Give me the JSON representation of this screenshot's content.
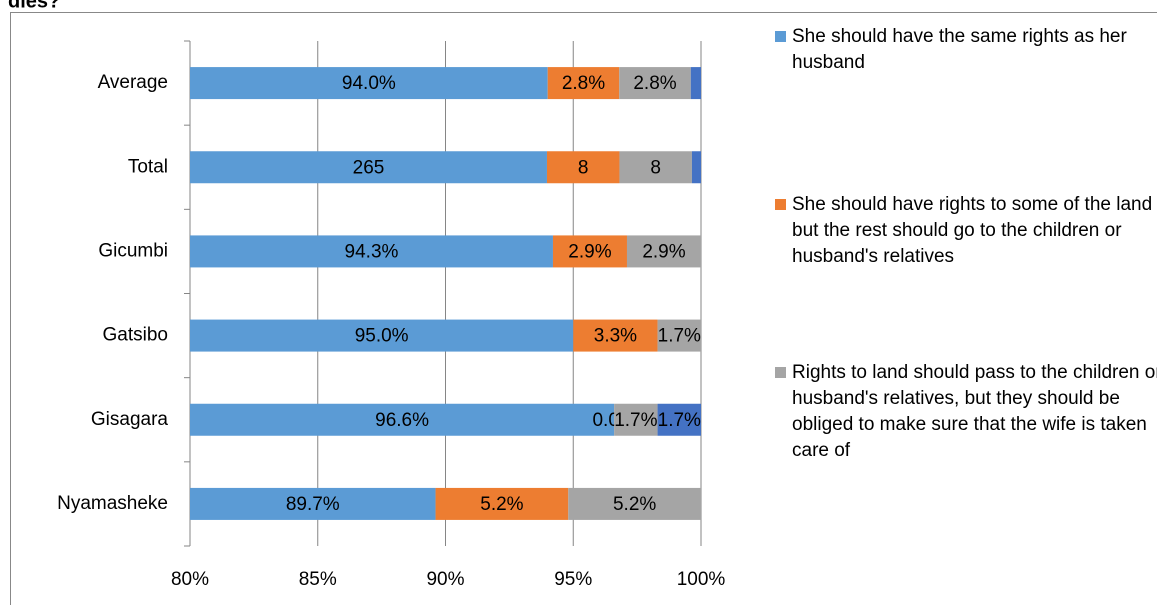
{
  "chart_data": {
    "type": "stacked-percent-bar",
    "title": "dies?",
    "categories": [
      "Average",
      "Total",
      "Gicumbi",
      "Gatsibo",
      "Gisagara",
      "Nyamasheke"
    ],
    "series": [
      {
        "name": "She should have the same rights as her husband",
        "color": "#5b9bd5",
        "values": [
          94.0,
          265,
          94.3,
          95.0,
          96.6,
          89.7
        ],
        "value_labels": [
          "94.0%",
          "265",
          "94.3%",
          "95.0%",
          "96.6%",
          "89.7%"
        ]
      },
      {
        "name": "She should have rights to some of the land but the rest should go to the children or husband's relatives",
        "color": "#ed7d31",
        "values": [
          2.8,
          8,
          2.9,
          3.3,
          0.0,
          5.2
        ],
        "value_labels": [
          "2.8%",
          "8",
          "2.9%",
          "3.3%",
          "0.0%",
          "5.2%"
        ]
      },
      {
        "name": "Rights to land should pass to the children or husband's relatives, but they should be obliged to make sure that the wife is taken care of",
        "color": "#a5a5a5",
        "values": [
          2.8,
          8,
          2.9,
          1.7,
          1.7,
          5.2
        ],
        "value_labels": [
          "2.8%",
          "8",
          "2.9%",
          "1.7%",
          "1.7%",
          "5.2%"
        ]
      },
      {
        "color": "#4472c4",
        "values": [
          0.4,
          1,
          0,
          0,
          1.7,
          0
        ],
        "value_labels": [
          null,
          null,
          null,
          null,
          "1.7%",
          null
        ]
      }
    ],
    "xlim": [
      80,
      100
    ],
    "xticks": [
      {
        "value": 80,
        "label": "80%"
      },
      {
        "value": 85,
        "label": "85%"
      },
      {
        "value": 90,
        "label": "90%"
      },
      {
        "value": 95,
        "label": "95%"
      },
      {
        "value": 100,
        "label": "100%"
      }
    ],
    "grid": true,
    "legend": "right"
  }
}
